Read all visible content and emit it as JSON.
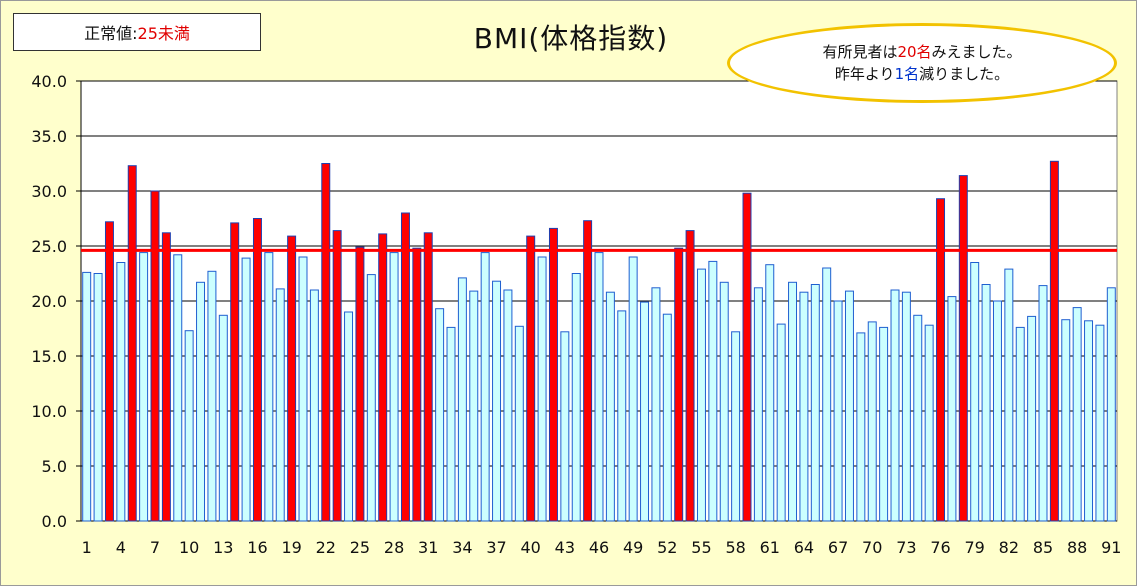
{
  "normal_value": {
    "label": "正常値:",
    "value": "25未満"
  },
  "callout": {
    "line1_pre": "有所見者は",
    "line1_num": "20名",
    "line1_post": "みえました。",
    "line2_pre": "昨年より",
    "line2_num": "1名",
    "line2_post": "減りました。"
  },
  "colors": {
    "normal_bar": "#ccffff",
    "normal_bar_border": "#1f5fd0",
    "abnormal_bar": "#ff0000",
    "abnormal_bar_border": "#1f3fb0",
    "threshold_line": "#ff0000",
    "plot_bg": "#ffffff",
    "chart_bg": "#ffffcc"
  },
  "chart_data": {
    "type": "bar",
    "title": "BMI(体格指数)",
    "xlabel": "",
    "ylabel": "",
    "ylim": [
      0,
      40
    ],
    "yticks": [
      "0.0",
      "5.0",
      "10.0",
      "15.0",
      "20.0",
      "25.0",
      "30.0",
      "35.0",
      "40.0"
    ],
    "xtick_labels": [
      "1",
      "4",
      "7",
      "10",
      "13",
      "16",
      "19",
      "22",
      "25",
      "28",
      "31",
      "34",
      "37",
      "40",
      "43",
      "46",
      "49",
      "52",
      "55",
      "58",
      "61",
      "64",
      "67",
      "70",
      "73",
      "76",
      "79",
      "82",
      "85",
      "88",
      "91"
    ],
    "categories": [
      "1",
      "2",
      "3",
      "4",
      "5",
      "6",
      "7",
      "8",
      "9",
      "10",
      "11",
      "12",
      "13",
      "14",
      "15",
      "16",
      "17",
      "18",
      "19",
      "20",
      "21",
      "22",
      "23",
      "24",
      "25",
      "26",
      "27",
      "28",
      "29",
      "30",
      "31",
      "32",
      "33",
      "34",
      "35",
      "36",
      "37",
      "38",
      "39",
      "40",
      "41",
      "42",
      "43",
      "44",
      "45",
      "46",
      "47",
      "48",
      "49",
      "50",
      "51",
      "52",
      "53",
      "54",
      "55",
      "56",
      "57",
      "58",
      "59",
      "60",
      "61",
      "62",
      "63",
      "64",
      "65",
      "66",
      "67",
      "68",
      "69",
      "70",
      "71",
      "72",
      "73",
      "74",
      "75",
      "76",
      "77",
      "78",
      "79",
      "80",
      "81",
      "82",
      "83",
      "84",
      "85",
      "86",
      "87",
      "88",
      "89",
      "90",
      "91"
    ],
    "values": [
      22.6,
      22.5,
      27.2,
      23.5,
      32.3,
      24.4,
      30.0,
      26.2,
      24.2,
      17.3,
      21.7,
      22.7,
      18.7,
      27.1,
      23.9,
      27.5,
      24.4,
      21.1,
      25.9,
      24.0,
      21.0,
      32.5,
      26.4,
      19.0,
      24.9,
      22.4,
      26.1,
      24.4,
      28.0,
      24.8,
      26.2,
      19.3,
      17.6,
      22.1,
      20.9,
      24.4,
      21.8,
      21.0,
      17.7,
      25.9,
      24.0,
      26.6,
      17.2,
      22.5,
      27.3,
      24.4,
      20.8,
      19.1,
      24.0,
      19.9,
      21.2,
      18.8,
      24.8,
      26.4,
      22.9,
      23.6,
      21.7,
      17.2,
      29.8,
      21.2,
      23.3,
      17.9,
      21.7,
      20.8,
      21.5,
      23.0,
      20.0,
      20.9,
      17.1,
      18.1,
      17.6,
      21.0,
      20.8,
      18.7,
      17.8,
      29.3,
      20.4,
      31.4,
      23.5,
      21.5,
      20.0,
      22.9,
      17.6,
      18.6,
      21.4,
      32.7,
      18.3,
      19.4,
      18.2,
      17.8,
      21.2
    ],
    "threshold": 24.6,
    "grid": true,
    "legend": "none"
  }
}
